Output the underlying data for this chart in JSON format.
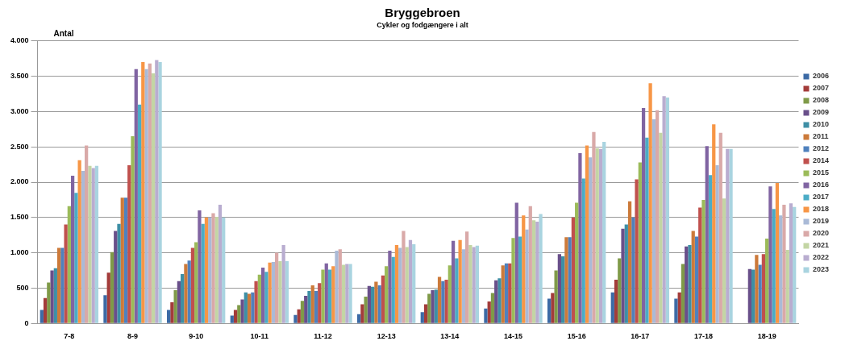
{
  "chart_data": {
    "type": "bar",
    "title": "Bryggebroen",
    "subtitle": "Cykler og fodgængere i alt",
    "ylabel": "Antal",
    "categories": [
      "7-8",
      "8-9",
      "9-10",
      "10-11",
      "11-12",
      "12-13",
      "13-14",
      "14-15",
      "15-16",
      "16-17",
      "17-18",
      "18-19"
    ],
    "series": [
      {
        "name": "2006",
        "color": "#3c6aa5",
        "values": [
          190,
          400,
          190,
          110,
          120,
          130,
          160,
          210,
          350,
          440,
          350,
          null
        ]
      },
      {
        "name": "2007",
        "color": "#a33c3a",
        "values": [
          360,
          720,
          300,
          190,
          200,
          270,
          270,
          310,
          430,
          620,
          440,
          null
        ]
      },
      {
        "name": "2008",
        "color": "#7f9a48",
        "values": [
          580,
          1010,
          470,
          260,
          320,
          380,
          420,
          430,
          750,
          920,
          840,
          null
        ]
      },
      {
        "name": "2009",
        "color": "#694f8a",
        "values": [
          750,
          1310,
          600,
          340,
          390,
          530,
          470,
          610,
          980,
          1340,
          1090,
          770
        ]
      },
      {
        "name": "2010",
        "color": "#3e8fa5",
        "values": [
          780,
          1410,
          700,
          440,
          460,
          520,
          480,
          640,
          950,
          1400,
          1110,
          760
        ]
      },
      {
        "name": "2011",
        "color": "#cc7a3a",
        "values": [
          1070,
          1780,
          840,
          420,
          540,
          590,
          660,
          820,
          1220,
          1730,
          1310,
          970
        ]
      },
      {
        "name": "2012",
        "color": "#4f81bd",
        "values": [
          1070,
          1780,
          890,
          440,
          460,
          540,
          600,
          850,
          1220,
          1500,
          1230,
          830
        ]
      },
      {
        "name": "2014",
        "color": "#c0504d",
        "values": [
          1400,
          2240,
          1070,
          600,
          570,
          680,
          620,
          850,
          1500,
          2040,
          1640,
          980
        ]
      },
      {
        "name": "2015",
        "color": "#9bbb59",
        "values": [
          1660,
          2650,
          1150,
          690,
          760,
          810,
          820,
          1210,
          1710,
          2280,
          1750,
          1200
        ]
      },
      {
        "name": "2016",
        "color": "#8064a2",
        "values": [
          2090,
          3600,
          1600,
          790,
          850,
          1030,
          1170,
          1710,
          2410,
          3050,
          2510,
          1940
        ]
      },
      {
        "name": "2017",
        "color": "#4bacc6",
        "values": [
          1850,
          3100,
          1410,
          730,
          760,
          940,
          920,
          1230,
          2050,
          2630,
          2100,
          1620
        ]
      },
      {
        "name": "2018",
        "color": "#f79646",
        "values": [
          2310,
          3700,
          1500,
          860,
          810,
          1110,
          1180,
          1530,
          2520,
          3400,
          2820,
          1990
        ]
      },
      {
        "name": "2019",
        "color": "#aabad7",
        "values": [
          2160,
          3600,
          1500,
          870,
          1030,
          1070,
          1050,
          1330,
          2350,
          2890,
          2240,
          1530
        ]
      },
      {
        "name": "2020",
        "color": "#d9a9a8",
        "values": [
          2520,
          3680,
          1560,
          1000,
          1050,
          1310,
          1300,
          1660,
          2710,
          3020,
          2700,
          1680
        ]
      },
      {
        "name": "2021",
        "color": "#c3d5a4",
        "values": [
          2230,
          3540,
          1510,
          880,
          830,
          1080,
          1110,
          1460,
          2480,
          2700,
          1770,
          1040
        ]
      },
      {
        "name": "2022",
        "color": "#b9add0",
        "values": [
          2200,
          3730,
          1680,
          1110,
          840,
          1180,
          1080,
          1440,
          2470,
          3220,
          2470,
          1700
        ]
      },
      {
        "name": "2023",
        "color": "#a9d4e0",
        "values": [
          2230,
          3700,
          1500,
          880,
          840,
          1120,
          1100,
          1550,
          2570,
          3200,
          2470,
          1650
        ]
      }
    ],
    "ylim": [
      0,
      4000
    ],
    "yticks": [
      {
        "value": 0,
        "label": "0"
      },
      {
        "value": 500,
        "label": "500"
      },
      {
        "value": 1000,
        "label": "1.000"
      },
      {
        "value": 1500,
        "label": "1.500"
      },
      {
        "value": 2000,
        "label": "2.000"
      },
      {
        "value": 2500,
        "label": "2.500"
      },
      {
        "value": 3000,
        "label": "3.000"
      },
      {
        "value": 3500,
        "label": "3.500"
      },
      {
        "value": 4000,
        "label": "4.000"
      }
    ],
    "grid": "y",
    "legend": "right"
  }
}
